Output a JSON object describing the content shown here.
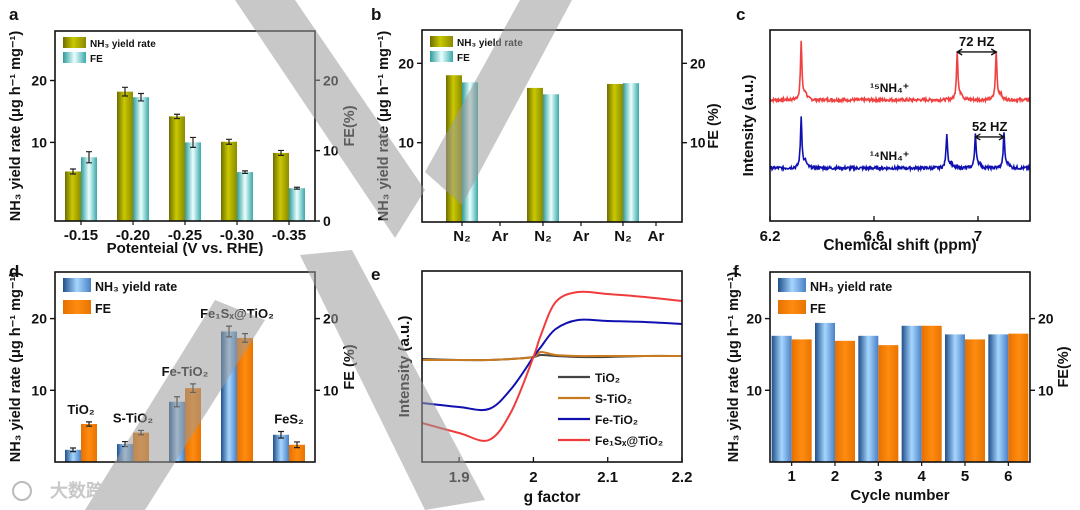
{
  "panel_letters": [
    "a",
    "b",
    "c",
    "d",
    "e",
    "f"
  ],
  "watermark": {
    "logo_text": "大数跨境"
  },
  "chart_data": [
    {
      "panel": "a",
      "type": "bar",
      "xlabel": "Potenteial (V vs. RHE)",
      "ylabel": "NH₃ yield rate (μg h⁻¹ mg⁻¹)",
      "y2label": "FE(%)",
      "categories": [
        "-0.15",
        "-0.20",
        "-0.25",
        "-0.30",
        "-0.35"
      ],
      "ylim": [
        -2.7,
        28
      ],
      "yticks": [
        10,
        20
      ],
      "y2lim": [
        0,
        27
      ],
      "y2ticks": [
        0,
        10,
        20
      ],
      "legend": "top-left",
      "series": [
        {
          "name": "NH₃ yield rate",
          "color": "#a8a800",
          "values": [
            5.3,
            18.2,
            14.2,
            10.1,
            8.3
          ],
          "errors": [
            0.4,
            0.7,
            0.35,
            0.4,
            0.4
          ]
        },
        {
          "name": "FE",
          "color": "#7fd8d8",
          "values": [
            7.6,
            17.3,
            10.0,
            5.2,
            2.6
          ],
          "errors": [
            0.9,
            0.6,
            0.8,
            0.2,
            0.15
          ]
        }
      ]
    },
    {
      "panel": "b",
      "type": "bar",
      "xlabel": "",
      "ylabel": "NH₃ yield rate (μg h⁻¹ mg⁻¹)",
      "y2label": "FE (%)",
      "categories": [
        "N₂",
        "Ar",
        "N₂",
        "Ar",
        "N₂",
        "Ar"
      ],
      "ylim": [
        0,
        24.2
      ],
      "yticks": [
        10,
        20
      ],
      "y2lim": [
        0,
        24.2
      ],
      "y2ticks": [
        10,
        20
      ],
      "legend": "top-left",
      "series": [
        {
          "name": "NH₃ yield rate",
          "color": "#a8a800",
          "values": [
            18.5,
            0,
            16.9,
            0,
            17.4,
            0
          ]
        },
        {
          "name": "FE",
          "color": "#7fd8d8",
          "values": [
            17.6,
            0,
            16.1,
            0,
            17.5,
            0
          ]
        }
      ]
    },
    {
      "panel": "c",
      "type": "line",
      "xlabel": "Chemical shift (ppm)",
      "ylabel": "Intensity (a.u.)",
      "xlim": [
        6.2,
        7.2
      ],
      "xticks": [
        6.2,
        6.6,
        7.0
      ],
      "ylim": [
        0,
        100
      ],
      "series": [
        {
          "name": "¹⁵NH₄⁺",
          "color": "#f04040",
          "baseline": 63.4,
          "peaks": [
            {
              "ppm": 6.32,
              "height": 29.8
            },
            {
              "ppm": 6.92,
              "height": 25
            },
            {
              "ppm": 7.07,
              "height": 25
            }
          ]
        },
        {
          "name": "¹⁴NH₄⁺",
          "color": "#1010b0",
          "baseline": 27.7,
          "peaks": [
            {
              "ppm": 6.32,
              "height": 26.7
            },
            {
              "ppm": 6.88,
              "height": 18
            },
            {
              "ppm": 6.99,
              "height": 18
            },
            {
              "ppm": 7.1,
              "height": 18
            }
          ]
        }
      ],
      "annotations": [
        {
          "text": "72 HZ",
          "from": 6.92,
          "to": 7.07,
          "level": 88.5
        },
        {
          "text": "52 HZ",
          "from": 6.99,
          "to": 7.1,
          "level": 44
        }
      ]
    },
    {
      "panel": "d",
      "type": "bar",
      "xlabel": "",
      "ylabel": "NH₃ yield rate (μg h⁻¹ mg⁻¹)",
      "y2label": "FE (%)",
      "categories": [
        "TiO₂",
        "S-TiO₂",
        "Fe-TiO₂",
        "Fe₁Sₓ@TiO₂",
        "FeS₂"
      ],
      "category_labels_above": true,
      "ylim": [
        0,
        26.5
      ],
      "yticks": [
        10,
        20
      ],
      "y2lim": [
        0,
        26.5
      ],
      "y2ticks": [
        10,
        20
      ],
      "legend": "top-left",
      "series": [
        {
          "name": "NH₃ yield rate",
          "color": "#5a9ae0",
          "values": [
            1.7,
            2.5,
            8.4,
            18.2,
            3.8
          ],
          "errors": [
            0.25,
            0.35,
            0.7,
            0.75,
            0.45
          ]
        },
        {
          "name": "FE",
          "color": "#f08000",
          "values": [
            5.3,
            4.1,
            10.3,
            17.3,
            2.4
          ],
          "errors": [
            0.3,
            0.3,
            0.6,
            0.6,
            0.4
          ]
        }
      ]
    },
    {
      "panel": "e",
      "type": "line",
      "xlabel": "g factor",
      "ylabel": "Intensity (a.u.)",
      "xlim": [
        1.85,
        2.2
      ],
      "xticks": [
        1.9,
        2.0,
        2.1,
        2.2
      ],
      "ylim": [
        -105,
        86
      ],
      "legend": "bottom-right",
      "x": [
        1.85,
        1.9,
        1.94,
        1.97,
        2.0,
        2.01,
        2.03,
        2.06,
        2.1,
        2.15,
        2.2
      ],
      "series": [
        {
          "name": "TiO₂",
          "color": "#444444",
          "values": [
            -2,
            -3,
            -3,
            -2,
            0,
            2,
            1,
            0,
            0,
            1,
            1
          ]
        },
        {
          "name": "S-TiO₂",
          "color": "#c87a20",
          "values": [
            -3,
            -3,
            -3,
            -2,
            0,
            5,
            2,
            1,
            1,
            1,
            1
          ]
        },
        {
          "name": "Fe-TiO₂",
          "color": "#1010b0",
          "values": [
            -46,
            -50,
            -52,
            -32,
            0,
            10,
            28,
            37,
            36,
            35,
            33
          ]
        },
        {
          "name": "Fe₁Sₓ@TiO₂",
          "color": "#f03c3c",
          "values": [
            -66,
            -76,
            -83,
            -55,
            0,
            22,
            55,
            65,
            63,
            60,
            56
          ]
        }
      ]
    },
    {
      "panel": "f",
      "type": "bar",
      "xlabel": "Cycle number",
      "ylabel": "NH₃ yield rate (μg h⁻¹ mg⁻¹)",
      "y2label": "FE(%)",
      "categories": [
        "1",
        "2",
        "3",
        "4",
        "5",
        "6"
      ],
      "ylim": [
        0,
        26.5
      ],
      "yticks": [
        10,
        20
      ],
      "y2lim": [
        0,
        26.5
      ],
      "y2ticks": [
        10,
        20
      ],
      "legend": "top-left",
      "series": [
        {
          "name": "NH₃ yield rate",
          "color": "#5a9ae0",
          "values": [
            17.6,
            19.4,
            17.6,
            19.0,
            17.8,
            17.8
          ]
        },
        {
          "name": "FE",
          "color": "#f08000",
          "values": [
            17.1,
            16.9,
            16.3,
            19.0,
            17.1,
            17.9
          ]
        }
      ]
    }
  ]
}
